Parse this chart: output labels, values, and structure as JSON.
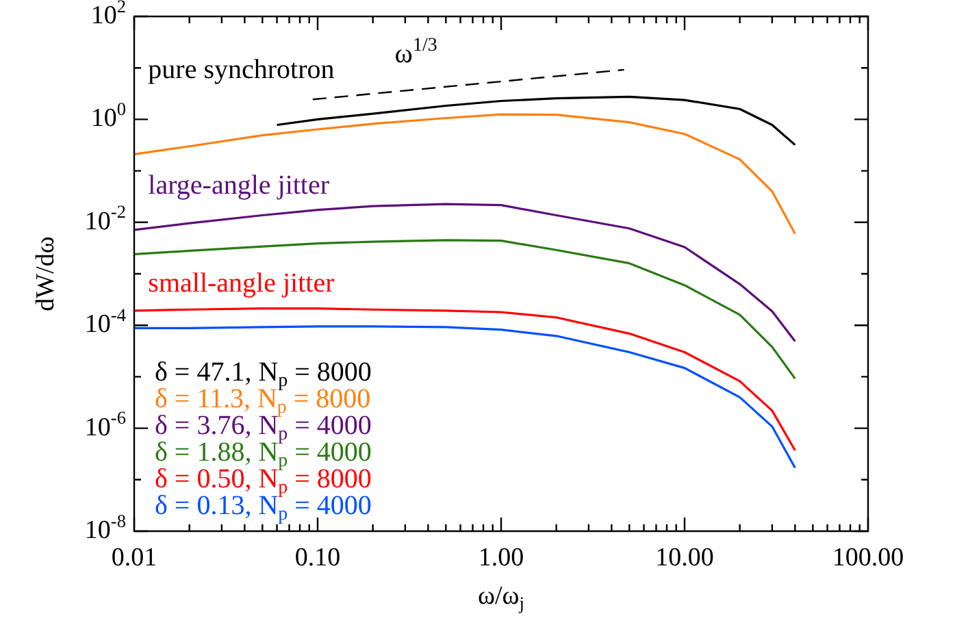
{
  "chart_data": {
    "type": "line",
    "xlabel": "ω/ω$_{j}$",
    "ylabel": "dW/dω",
    "log": "xy",
    "marker": "none",
    "line_style": "solid",
    "legend": "bottom left",
    "xlim": [
      0.01,
      100
    ],
    "xticks": [
      {
        "value": 0.01,
        "label": "0.01"
      },
      {
        "value": 0.02,
        "label": null
      },
      {
        "value": 0.03,
        "label": null
      },
      {
        "value": 0.04,
        "label": null
      },
      {
        "value": 0.05,
        "label": null
      },
      {
        "value": 0.06,
        "label": null
      },
      {
        "value": 0.07,
        "label": null
      },
      {
        "value": 0.08,
        "label": null
      },
      {
        "value": 0.09,
        "label": null
      },
      {
        "value": 0.1,
        "label": "0.10"
      },
      {
        "value": 0.2,
        "label": null
      },
      {
        "value": 0.3,
        "label": null
      },
      {
        "value": 0.4,
        "label": null
      },
      {
        "value": 0.5,
        "label": null
      },
      {
        "value": 0.6,
        "label": null
      },
      {
        "value": 0.7,
        "label": null
      },
      {
        "value": 0.8,
        "label": null
      },
      {
        "value": 0.9,
        "label": null
      },
      {
        "value": 1,
        "label": "1.00"
      },
      {
        "value": 2,
        "label": null
      },
      {
        "value": 3,
        "label": null
      },
      {
        "value": 4,
        "label": null
      },
      {
        "value": 5,
        "label": null
      },
      {
        "value": 6,
        "label": null
      },
      {
        "value": 7,
        "label": null
      },
      {
        "value": 8,
        "label": null
      },
      {
        "value": 9,
        "label": null
      },
      {
        "value": 10,
        "label": "10.00"
      },
      {
        "value": 20,
        "label": null
      },
      {
        "value": 30,
        "label": null
      },
      {
        "value": 40,
        "label": null
      },
      {
        "value": 50,
        "label": null
      },
      {
        "value": 60,
        "label": null
      },
      {
        "value": 70,
        "label": null
      },
      {
        "value": 80,
        "label": null
      },
      {
        "value": 90,
        "label": null
      },
      {
        "value": 100,
        "label": "100.00"
      }
    ],
    "ylim": [
      1e-08,
      100
    ],
    "yticks": [
      {
        "value": 1e-08,
        "label": "10$^{-8}$"
      },
      {
        "value": 1e-07,
        "label": null
      },
      {
        "value": 1e-06,
        "label": "10$^{-6}$"
      },
      {
        "value": 1e-05,
        "label": null
      },
      {
        "value": 0.0001,
        "label": "10$^{-4}$"
      },
      {
        "value": 0.001,
        "label": null
      },
      {
        "value": 0.01,
        "label": "10$^{-2}$"
      },
      {
        "value": 0.1,
        "label": null
      },
      {
        "value": 1,
        "label": "10$^{0}$"
      },
      {
        "value": 10,
        "label": null
      },
      {
        "value": 100,
        "label": "10$^{2}$"
      }
    ],
    "x": [
      0.01,
      0.02,
      0.05,
      0.1,
      0.2,
      0.5,
      1,
      2,
      5,
      10,
      20,
      30,
      40
    ],
    "series": [
      {
        "name": "δ = 47.1, N$_{p}$ = 8000",
        "color": "#000000",
        "x": [
          0.06,
          0.1,
          0.2,
          0.5,
          1,
          2,
          5,
          10,
          20,
          30,
          40
        ],
        "values": [
          0.78,
          1.0,
          1.29,
          1.84,
          2.28,
          2.56,
          2.75,
          2.38,
          1.59,
          0.78,
          0.32
        ]
      },
      {
        "name": "δ = 11.3, N$_{p}$ = 8000",
        "color": "#ff7f0e",
        "values": [
          0.21,
          0.3,
          0.49,
          0.64,
          0.82,
          1.06,
          1.25,
          1.23,
          0.88,
          0.52,
          0.167,
          0.04,
          0.006
        ]
      },
      {
        "name": "δ = 3.76, N$_{p}$ = 4000",
        "color": "#5b0f7a",
        "values": [
          0.0071,
          0.0096,
          0.0137,
          0.0174,
          0.0206,
          0.0226,
          0.0216,
          0.0137,
          0.0076,
          0.0033,
          0.00063,
          0.000187,
          4.9e-05
        ]
      },
      {
        "name": "δ = 1.88, N$_{p}$ = 4000",
        "color": "#2a7a14",
        "values": [
          0.0024,
          0.0028,
          0.0034,
          0.0039,
          0.0042,
          0.0045,
          0.0044,
          0.0029,
          0.0016,
          0.0006,
          0.00016,
          3.8e-05,
          9.2e-06
        ]
      },
      {
        "name": "δ = 0.50, N$_{p}$ = 8000",
        "color": "#ff0000",
        "values": [
          0.000192,
          0.000202,
          0.000212,
          0.000212,
          0.000202,
          0.000192,
          0.00018,
          0.000142,
          6.9e-05,
          3e-05,
          8.2e-06,
          2.2e-06,
          3.7e-07
        ]
      },
      {
        "name": "δ = 0.13, N$_{p}$ = 4000",
        "color": "#0050ff",
        "values": [
          8.8e-05,
          8.8e-05,
          9.2e-05,
          9.5e-05,
          9.5e-05,
          9.2e-05,
          8.2e-05,
          6.2e-05,
          3e-05,
          1.48e-05,
          4e-06,
          1.08e-06,
          1.7e-07
        ]
      },
      {
        "color": "#000000",
        "line_style": "dashed",
        "x": [
          0.094,
          4.68
        ],
        "values": [
          2.44,
          9.2
        ]
      }
    ],
    "annotations": [
      "pure synchrotron",
      "ω$^{1/3}$",
      "large-angle jitter",
      "small-angle jitter"
    ]
  }
}
